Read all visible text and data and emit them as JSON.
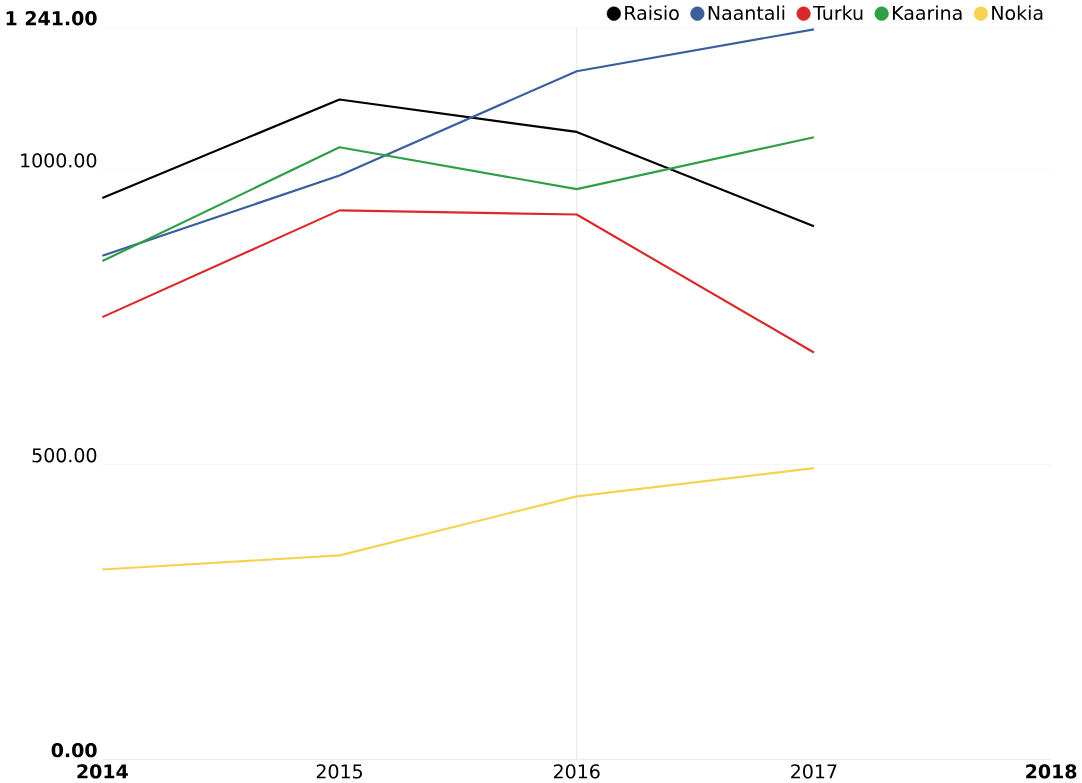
{
  "chart_data": {
    "type": "line",
    "x": [
      2014,
      2015,
      2016,
      2017
    ],
    "series": [
      {
        "name": "Raisio",
        "color": "#000000",
        "values": [
          952,
          1119,
          1064,
          904
        ]
      },
      {
        "name": "Naantali",
        "color": "#3a5f9b",
        "values": [
          854,
          990,
          1167,
          1238
        ]
      },
      {
        "name": "Turku",
        "color": "#d92a2a",
        "values": [
          750,
          931,
          924,
          690
        ]
      },
      {
        "name": "Kaarina",
        "color": "#2e9e47",
        "values": [
          845,
          1038,
          967,
          1055
        ]
      },
      {
        "name": "Nokia",
        "color": "#f5d352",
        "values": [
          322,
          346,
          446,
          494
        ]
      }
    ],
    "xlim": [
      2014,
      2018
    ],
    "xticks": [
      2014,
      2015,
      2016,
      2017,
      2018
    ],
    "ylim": [
      0,
      1241
    ],
    "yticks": [
      {
        "value": 0,
        "label": "0.00"
      },
      {
        "value": 500,
        "label": "500.00"
      },
      {
        "value": 1000,
        "label": "1000.00"
      },
      {
        "value": 1241,
        "label": "1 241.00"
      }
    ],
    "ref_lines": [
      {
        "axis": "x",
        "value": 2016,
        "color": "#e6e6e6"
      }
    ],
    "grid": "y",
    "legend": "top right",
    "marker": "none",
    "line_style": "solid"
  }
}
